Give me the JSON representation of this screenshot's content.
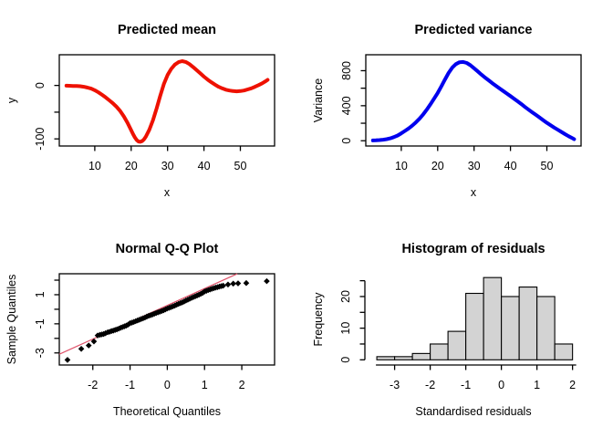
{
  "figure": {
    "background": "#ffffff",
    "text_color": "#000000",
    "axis_color": "#000000"
  },
  "chart_data": [
    {
      "id": "mean",
      "type": "line",
      "title": "Predicted mean",
      "xlabel": "x",
      "ylabel": "y",
      "color": "#ee1100",
      "line_width": 4,
      "box": true,
      "grid": false,
      "xlim": [
        0.25,
        59.4
      ],
      "ylim": [
        -113.3,
        57.4
      ],
      "xticks": [
        {
          "v": 10,
          "label": "10"
        },
        {
          "v": 20,
          "label": "20"
        },
        {
          "v": 30,
          "label": "30"
        },
        {
          "v": 40,
          "label": "40"
        },
        {
          "v": 50,
          "label": "50"
        }
      ],
      "yticks": [
        {
          "v": 0,
          "label": "0"
        },
        {
          "v": -50,
          "label": ""
        },
        {
          "v": -100,
          "label": "-100"
        }
      ],
      "points": [
        [
          2.2,
          -0.5
        ],
        [
          3,
          -0.7
        ],
        [
          4,
          -1
        ],
        [
          5,
          -1
        ],
        [
          6,
          -1.5
        ],
        [
          7,
          -2.5
        ],
        [
          8,
          -4
        ],
        [
          9,
          -6
        ],
        [
          10,
          -9
        ],
        [
          11,
          -13
        ],
        [
          12,
          -17.5
        ],
        [
          13,
          -22.5
        ],
        [
          14,
          -28
        ],
        [
          15,
          -33.5
        ],
        [
          16,
          -40
        ],
        [
          17,
          -48
        ],
        [
          18,
          -58
        ],
        [
          19,
          -70
        ],
        [
          20,
          -84
        ],
        [
          20.5,
          -91
        ],
        [
          21,
          -97
        ],
        [
          21.5,
          -102
        ],
        [
          22,
          -105
        ],
        [
          22.5,
          -105.5
        ],
        [
          23,
          -104
        ],
        [
          23.5,
          -101
        ],
        [
          24,
          -96
        ],
        [
          25,
          -83
        ],
        [
          26,
          -65
        ],
        [
          27,
          -43
        ],
        [
          28,
          -19
        ],
        [
          29,
          3
        ],
        [
          30,
          19.5
        ],
        [
          31,
          31
        ],
        [
          32,
          39
        ],
        [
          33,
          43.5
        ],
        [
          34,
          45.5
        ],
        [
          35,
          44
        ],
        [
          36,
          40
        ],
        [
          37,
          34.5
        ],
        [
          38,
          28.5
        ],
        [
          39,
          22.5
        ],
        [
          40,
          16.5
        ],
        [
          41,
          11
        ],
        [
          42,
          6
        ],
        [
          43,
          1.5
        ],
        [
          44,
          -2.5
        ],
        [
          45,
          -5.5
        ],
        [
          46,
          -8
        ],
        [
          47,
          -9.5
        ],
        [
          48,
          -10.5
        ],
        [
          49,
          -11
        ],
        [
          50,
          -10.5
        ],
        [
          51,
          -9.5
        ],
        [
          52,
          -7.5
        ],
        [
          53,
          -5.5
        ],
        [
          54,
          -2.5
        ],
        [
          55,
          0.5
        ],
        [
          56,
          4
        ],
        [
          57,
          8
        ],
        [
          57.5,
          10.5
        ]
      ]
    },
    {
      "id": "variance",
      "type": "line",
      "title": "Predicted variance",
      "xlabel": "x",
      "ylabel": "Variance",
      "color": "#0000ee",
      "line_width": 4,
      "box": true,
      "grid": false,
      "xlim": [
        0.25,
        59.4
      ],
      "ylim": [
        -60,
        982
      ],
      "xticks": [
        {
          "v": 10,
          "label": "10"
        },
        {
          "v": 20,
          "label": "20"
        },
        {
          "v": 30,
          "label": "30"
        },
        {
          "v": 40,
          "label": "40"
        },
        {
          "v": 50,
          "label": "50"
        }
      ],
      "yticks": [
        {
          "v": 0,
          "label": "0"
        },
        {
          "v": 200,
          "label": ""
        },
        {
          "v": 400,
          "label": "400"
        },
        {
          "v": 600,
          "label": ""
        },
        {
          "v": 800,
          "label": "800"
        }
      ],
      "points": [
        [
          2.2,
          4
        ],
        [
          3,
          5
        ],
        [
          4,
          8
        ],
        [
          5,
          12
        ],
        [
          6,
          18
        ],
        [
          7,
          28
        ],
        [
          8,
          42
        ],
        [
          9,
          60
        ],
        [
          10,
          85
        ],
        [
          11,
          112
        ],
        [
          12,
          140
        ],
        [
          13,
          172
        ],
        [
          14,
          210
        ],
        [
          15,
          252
        ],
        [
          16,
          300
        ],
        [
          17,
          355
        ],
        [
          18,
          415
        ],
        [
          19,
          480
        ],
        [
          20,
          545
        ],
        [
          21,
          620
        ],
        [
          22,
          700
        ],
        [
          23,
          775
        ],
        [
          24,
          835
        ],
        [
          25,
          875
        ],
        [
          26,
          897
        ],
        [
          27,
          900
        ],
        [
          28,
          888
        ],
        [
          29,
          862
        ],
        [
          30,
          828
        ],
        [
          31,
          792
        ],
        [
          32,
          756
        ],
        [
          33,
          722
        ],
        [
          34,
          690
        ],
        [
          35,
          658
        ],
        [
          36,
          628
        ],
        [
          37,
          598
        ],
        [
          38,
          568
        ],
        [
          39,
          539
        ],
        [
          40,
          510
        ],
        [
          41,
          480
        ],
        [
          42,
          450
        ],
        [
          43,
          418
        ],
        [
          44,
          385
        ],
        [
          45,
          355
        ],
        [
          46,
          325
        ],
        [
          47,
          295
        ],
        [
          48,
          265
        ],
        [
          49,
          235
        ],
        [
          50,
          205
        ],
        [
          51,
          178
        ],
        [
          52,
          150
        ],
        [
          53,
          125
        ],
        [
          54,
          100
        ],
        [
          55,
          75
        ],
        [
          56,
          52
        ],
        [
          57,
          30
        ],
        [
          57.5,
          18
        ]
      ]
    },
    {
      "id": "qq",
      "type": "scatter",
      "title": "Normal Q-Q Plot",
      "xlabel": "Theoretical Quantiles",
      "ylabel": "Sample Quantiles",
      "point_color": "#000000",
      "point_size": 3.3,
      "box": true,
      "grid": false,
      "xlim": [
        -2.9,
        2.88
      ],
      "ylim": [
        -3.83,
        2.44
      ],
      "xticks": [
        {
          "v": -2,
          "label": "-2"
        },
        {
          "v": -1,
          "label": "-1"
        },
        {
          "v": 0,
          "label": "0"
        },
        {
          "v": 1,
          "label": "1"
        },
        {
          "v": 2,
          "label": "2"
        }
      ],
      "yticks": [
        {
          "v": 2,
          "label": ""
        },
        {
          "v": 1,
          "label": "1"
        },
        {
          "v": 0,
          "label": ""
        },
        {
          "v": -1,
          "label": "-1"
        },
        {
          "v": -2,
          "label": ""
        },
        {
          "v": -3,
          "label": "-3"
        }
      ],
      "ref_line": {
        "x1": -2.9,
        "y1": -3.09,
        "x2": 1.88,
        "y2": 2.44,
        "color": "#DF536B",
        "width": 1.2
      },
      "points": [
        [
          -2.68,
          -3.48
        ],
        [
          -2.31,
          -2.72
        ],
        [
          -2.11,
          -2.49
        ],
        [
          -1.97,
          -2.21
        ],
        [
          -1.87,
          -1.8
        ],
        [
          -1.81,
          -1.76
        ],
        [
          -1.76,
          -1.73
        ],
        [
          -1.71,
          -1.7
        ],
        [
          -1.66,
          -1.65
        ],
        [
          -1.6,
          -1.58
        ],
        [
          -1.55,
          -1.55
        ],
        [
          -1.5,
          -1.5
        ],
        [
          -1.45,
          -1.47
        ],
        [
          -1.4,
          -1.42
        ],
        [
          -1.35,
          -1.38
        ],
        [
          -1.3,
          -1.33
        ],
        [
          -1.25,
          -1.27
        ],
        [
          -1.2,
          -1.22
        ],
        [
          -1.15,
          -1.17
        ],
        [
          -1.1,
          -1.12
        ],
        [
          -1.05,
          -1.05
        ],
        [
          -1.0,
          -0.96
        ],
        [
          -0.95,
          -0.92
        ],
        [
          -0.9,
          -0.87
        ],
        [
          -0.85,
          -0.82
        ],
        [
          -0.8,
          -0.77
        ],
        [
          -0.75,
          -0.72
        ],
        [
          -0.7,
          -0.67
        ],
        [
          -0.65,
          -0.62
        ],
        [
          -0.6,
          -0.57
        ],
        [
          -0.55,
          -0.5
        ],
        [
          -0.5,
          -0.45
        ],
        [
          -0.45,
          -0.41
        ],
        [
          -0.4,
          -0.36
        ],
        [
          -0.35,
          -0.31
        ],
        [
          -0.3,
          -0.26
        ],
        [
          -0.25,
          -0.21
        ],
        [
          -0.2,
          -0.17
        ],
        [
          -0.15,
          -0.12
        ],
        [
          -0.1,
          -0.07
        ],
        [
          -0.05,
          -0.01
        ],
        [
          0.0,
          0.05
        ],
        [
          0.05,
          0.1
        ],
        [
          0.1,
          0.15
        ],
        [
          0.15,
          0.2
        ],
        [
          0.2,
          0.25
        ],
        [
          0.25,
          0.31
        ],
        [
          0.3,
          0.37
        ],
        [
          0.35,
          0.42
        ],
        [
          0.4,
          0.47
        ],
        [
          0.45,
          0.53
        ],
        [
          0.5,
          0.6
        ],
        [
          0.55,
          0.66
        ],
        [
          0.6,
          0.72
        ],
        [
          0.65,
          0.78
        ],
        [
          0.7,
          0.84
        ],
        [
          0.75,
          0.89
        ],
        [
          0.8,
          0.95
        ],
        [
          0.85,
          1.0
        ],
        [
          0.9,
          1.06
        ],
        [
          0.95,
          1.13
        ],
        [
          1.0,
          1.22
        ],
        [
          1.05,
          1.27
        ],
        [
          1.1,
          1.32
        ],
        [
          1.15,
          1.36
        ],
        [
          1.2,
          1.41
        ],
        [
          1.25,
          1.45
        ],
        [
          1.3,
          1.49
        ],
        [
          1.35,
          1.52
        ],
        [
          1.4,
          1.56
        ],
        [
          1.45,
          1.59
        ],
        [
          1.5,
          1.62
        ],
        [
          1.63,
          1.7
        ],
        [
          1.77,
          1.76
        ],
        [
          1.9,
          1.78
        ],
        [
          2.12,
          1.8
        ],
        [
          2.67,
          1.93
        ]
      ]
    },
    {
      "id": "hist",
      "type": "histogram",
      "title": "Histogram of residuals",
      "xlabel": "Standardised residuals",
      "ylabel": "Frequency",
      "bar_fill": "#d3d3d3",
      "bar_stroke": "#000000",
      "box": false,
      "grid": false,
      "xlim": [
        -3.81,
        2.24
      ],
      "ylim": [
        -1.64,
        27.2
      ],
      "xticks": [
        {
          "v": -3,
          "label": "-3"
        },
        {
          "v": -2,
          "label": "-2"
        },
        {
          "v": -1,
          "label": "-1"
        },
        {
          "v": 0,
          "label": "0"
        },
        {
          "v": 1,
          "label": "1"
        },
        {
          "v": 2,
          "label": "2"
        }
      ],
      "yticks": [
        {
          "v": 0,
          "label": "0"
        },
        {
          "v": 5,
          "label": ""
        },
        {
          "v": 10,
          "label": "10"
        },
        {
          "v": 15,
          "label": ""
        },
        {
          "v": 20,
          "label": "20"
        },
        {
          "v": 25,
          "label": ""
        }
      ],
      "edges": [
        -3.5,
        -3.0,
        -2.5,
        -2.0,
        -1.5,
        -1.0,
        -0.5,
        0.0,
        0.5,
        1.0,
        1.5,
        2.0
      ],
      "counts": [
        1,
        1,
        2,
        5,
        9,
        21,
        26,
        20,
        23,
        20,
        5
      ]
    }
  ]
}
